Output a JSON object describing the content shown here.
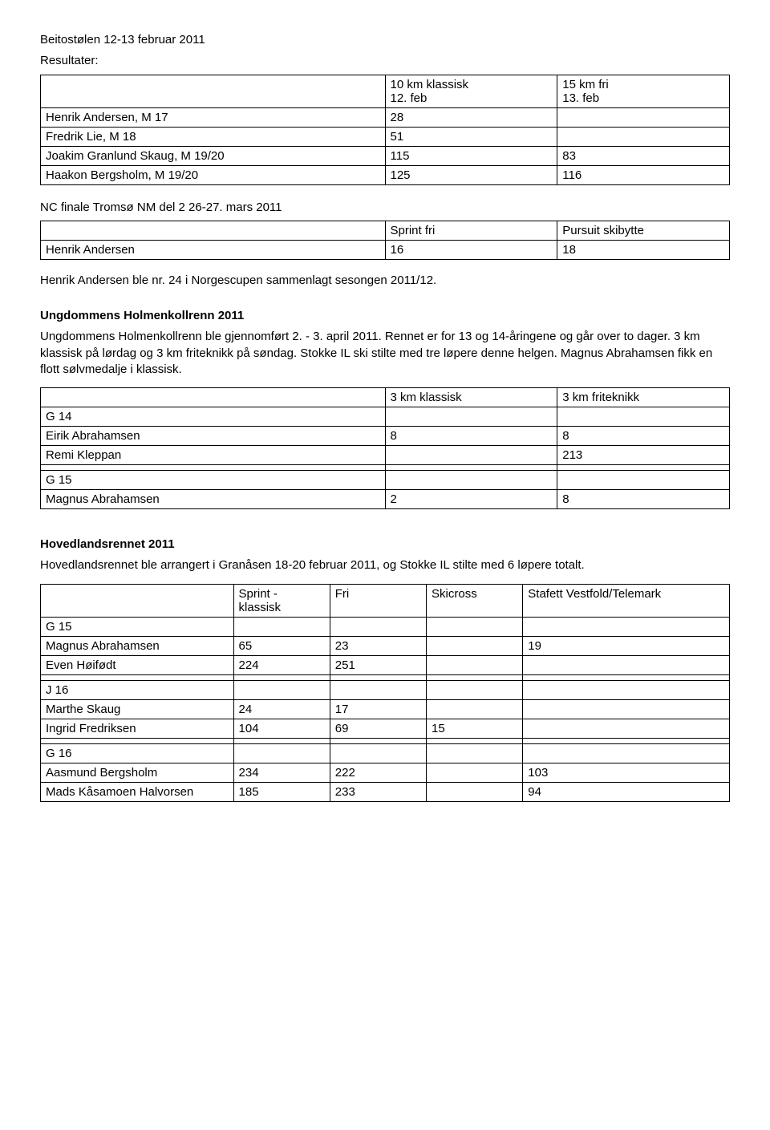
{
  "title_line": "Beitostølen 12-13 februar 2011",
  "resultater_label": "Resultater:",
  "table1": {
    "headers": [
      "",
      "10 km klassisk\n12. feb",
      "15 km fri\n13. feb"
    ],
    "rows": [
      [
        "Henrik Andersen, M 17",
        "28",
        ""
      ],
      [
        "Fredrik Lie, M 18",
        "51",
        ""
      ],
      [
        "Joakim Granlund Skaug, M 19/20",
        "115",
        "83"
      ],
      [
        "Haakon Bergsholm, M 19/20",
        "125",
        "116"
      ]
    ]
  },
  "nc_line": "NC finale Tromsø NM del 2 26-27. mars 2011",
  "table2": {
    "headers": [
      "",
      "Sprint fri",
      "Pursuit skibytte"
    ],
    "rows": [
      [
        "Henrik Andersen",
        "16",
        "18"
      ]
    ]
  },
  "henrik_line": "Henrik Andersen ble nr. 24 i Norgescupen sammenlagt sesongen 2011/12.",
  "ungdommens_title": "Ungdommens Holmenkollrenn 2011",
  "ungdommens_para": "Ungdommens Holmenkollrenn ble gjennomført 2. - 3. april 2011. Rennet er for 13 og 14-åringene og går over to dager. 3 km klassisk på lørdag og 3 km friteknikk på søndag. Stokke IL ski stilte med tre løpere denne helgen. Magnus Abrahamsen fikk en flott sølvmedalje i klassisk.",
  "table3": {
    "headers": [
      "",
      "3 km klassisk",
      "3 km friteknikk"
    ],
    "rows": [
      [
        "G 14",
        "",
        ""
      ],
      [
        "Eirik Abrahamsen",
        "8",
        "8"
      ],
      [
        "Remi Kleppan",
        "",
        "213"
      ],
      [
        "",
        "",
        ""
      ],
      [
        "G 15",
        "",
        ""
      ],
      [
        "Magnus Abrahamsen",
        "2",
        "8"
      ]
    ]
  },
  "hovedlands_title": "Hovedlandsrennet 2011",
  "hovedlands_para": "Hovedlandsrennet ble arrangert i Granåsen 18-20 februar 2011, og Stokke IL stilte med 6 løpere totalt.",
  "table4": {
    "headers": [
      "",
      "Sprint -\nklassisk",
      "Fri",
      "Skicross",
      "Stafett Vestfold/Telemark"
    ],
    "rows": [
      [
        "G 15",
        "",
        "",
        "",
        ""
      ],
      [
        "Magnus Abrahamsen",
        "65",
        "23",
        "",
        "19"
      ],
      [
        "Even Høifødt",
        "224",
        "251",
        "",
        ""
      ],
      [
        "",
        "",
        "",
        "",
        ""
      ],
      [
        "J 16",
        "",
        "",
        "",
        ""
      ],
      [
        "Marthe Skaug",
        "24",
        "17",
        "",
        ""
      ],
      [
        "Ingrid Fredriksen",
        "104",
        "69",
        "15",
        ""
      ],
      [
        "",
        "",
        "",
        "",
        ""
      ],
      [
        "G 16",
        "",
        "",
        "",
        ""
      ],
      [
        "Aasmund Bergsholm",
        "234",
        "222",
        "",
        "103"
      ],
      [
        "Mads Kåsamoen Halvorsen",
        "185",
        "233",
        "",
        "94"
      ]
    ]
  },
  "table_styles": {
    "col_widths_3": [
      "50%",
      "25%",
      "25%"
    ],
    "col_widths_5": [
      "28%",
      "14%",
      "14%",
      "14%",
      "30%"
    ]
  }
}
